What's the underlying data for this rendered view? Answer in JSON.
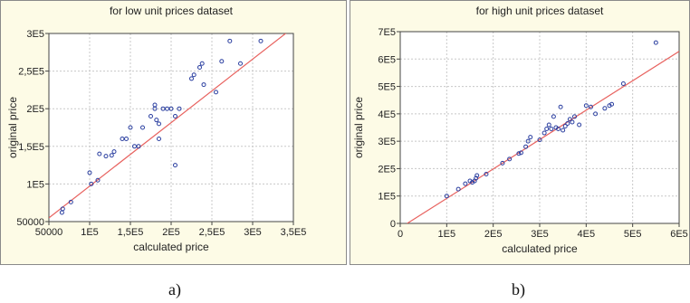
{
  "chart_data": [
    {
      "type": "scatter",
      "title": "for low unit prices dataset",
      "xlabel": "calculated price",
      "ylabel": "original price",
      "xlim": [
        50000,
        350000
      ],
      "ylim": [
        50000,
        300000
      ],
      "xticks": [
        50000,
        100000,
        150000,
        200000,
        250000,
        300000,
        350000
      ],
      "xtick_labels": [
        "50000",
        "1E5",
        "1,5E5",
        "2E5",
        "2,5E5",
        "3E5",
        "3,5E5"
      ],
      "yticks": [
        50000,
        100000,
        150000,
        200000,
        250000,
        300000
      ],
      "ytick_labels": [
        "50000",
        "1E5",
        "1,5E5",
        "2E5",
        "2,5E5",
        "3E5"
      ],
      "grid": true,
      "point_color": "#2b3fa0",
      "line_color": "#e8625f",
      "fit_line": [
        [
          50000,
          55000
        ],
        [
          350000,
          308000
        ]
      ],
      "points": [
        [
          66000,
          62000
        ],
        [
          67000,
          67000
        ],
        [
          77000,
          76000
        ],
        [
          100000,
          115000
        ],
        [
          102000,
          100000
        ],
        [
          110000,
          105000
        ],
        [
          112000,
          140000
        ],
        [
          120000,
          137000
        ],
        [
          127000,
          138000
        ],
        [
          130000,
          143000
        ],
        [
          140000,
          160000
        ],
        [
          145000,
          160000
        ],
        [
          150000,
          175000
        ],
        [
          155000,
          150000
        ],
        [
          160000,
          150000
        ],
        [
          165000,
          175000
        ],
        [
          175000,
          190000
        ],
        [
          180000,
          205000
        ],
        [
          180000,
          200000
        ],
        [
          182000,
          185000
        ],
        [
          185000,
          180000
        ],
        [
          185000,
          160000
        ],
        [
          190000,
          200000
        ],
        [
          195000,
          200000
        ],
        [
          200000,
          200000
        ],
        [
          205000,
          190000
        ],
        [
          210000,
          200000
        ],
        [
          205000,
          125000
        ],
        [
          225000,
          240000
        ],
        [
          228000,
          245000
        ],
        [
          235000,
          255000
        ],
        [
          238000,
          260000
        ],
        [
          240000,
          232000
        ],
        [
          255000,
          222000
        ],
        [
          262000,
          263000
        ],
        [
          272000,
          290000
        ],
        [
          285000,
          260000
        ],
        [
          310000,
          290000
        ]
      ]
    },
    {
      "type": "scatter",
      "title": "for high unit prices dataset",
      "xlabel": "calculated price",
      "ylabel": "original price",
      "xlim": [
        0,
        600000
      ],
      "ylim": [
        0,
        700000
      ],
      "xticks": [
        0,
        100000,
        200000,
        300000,
        400000,
        500000,
        600000
      ],
      "xtick_labels": [
        "0",
        "1E5",
        "2E5",
        "3E5",
        "4E5",
        "5E5",
        "6E5"
      ],
      "yticks": [
        0,
        100000,
        200000,
        300000,
        400000,
        500000,
        600000,
        700000
      ],
      "ytick_labels": [
        "0",
        "1E5",
        "2E5",
        "3E5",
        "4E5",
        "5E5",
        "6E5",
        "7E5"
      ],
      "grid": true,
      "point_color": "#2b3fa0",
      "line_color": "#e8625f",
      "fit_line": [
        [
          15000,
          0
        ],
        [
          600000,
          628000
        ]
      ],
      "points": [
        [
          100000,
          100000
        ],
        [
          125000,
          125000
        ],
        [
          140000,
          145000
        ],
        [
          150000,
          155000
        ],
        [
          155000,
          150000
        ],
        [
          160000,
          155000
        ],
        [
          163000,
          165000
        ],
        [
          165000,
          175000
        ],
        [
          185000,
          180000
        ],
        [
          220000,
          220000
        ],
        [
          235000,
          235000
        ],
        [
          255000,
          255000
        ],
        [
          260000,
          258000
        ],
        [
          270000,
          280000
        ],
        [
          275000,
          300000
        ],
        [
          280000,
          315000
        ],
        [
          300000,
          305000
        ],
        [
          310000,
          330000
        ],
        [
          315000,
          345000
        ],
        [
          320000,
          360000
        ],
        [
          325000,
          345000
        ],
        [
          330000,
          390000
        ],
        [
          335000,
          350000
        ],
        [
          340000,
          345000
        ],
        [
          345000,
          425000
        ],
        [
          350000,
          340000
        ],
        [
          355000,
          355000
        ],
        [
          360000,
          365000
        ],
        [
          365000,
          380000
        ],
        [
          370000,
          370000
        ],
        [
          375000,
          390000
        ],
        [
          385000,
          360000
        ],
        [
          400000,
          430000
        ],
        [
          410000,
          425000
        ],
        [
          420000,
          400000
        ],
        [
          440000,
          420000
        ],
        [
          450000,
          430000
        ],
        [
          455000,
          435000
        ],
        [
          480000,
          510000
        ],
        [
          550000,
          660000
        ]
      ]
    }
  ],
  "captions": {
    "a": "a)",
    "b": "b)"
  }
}
